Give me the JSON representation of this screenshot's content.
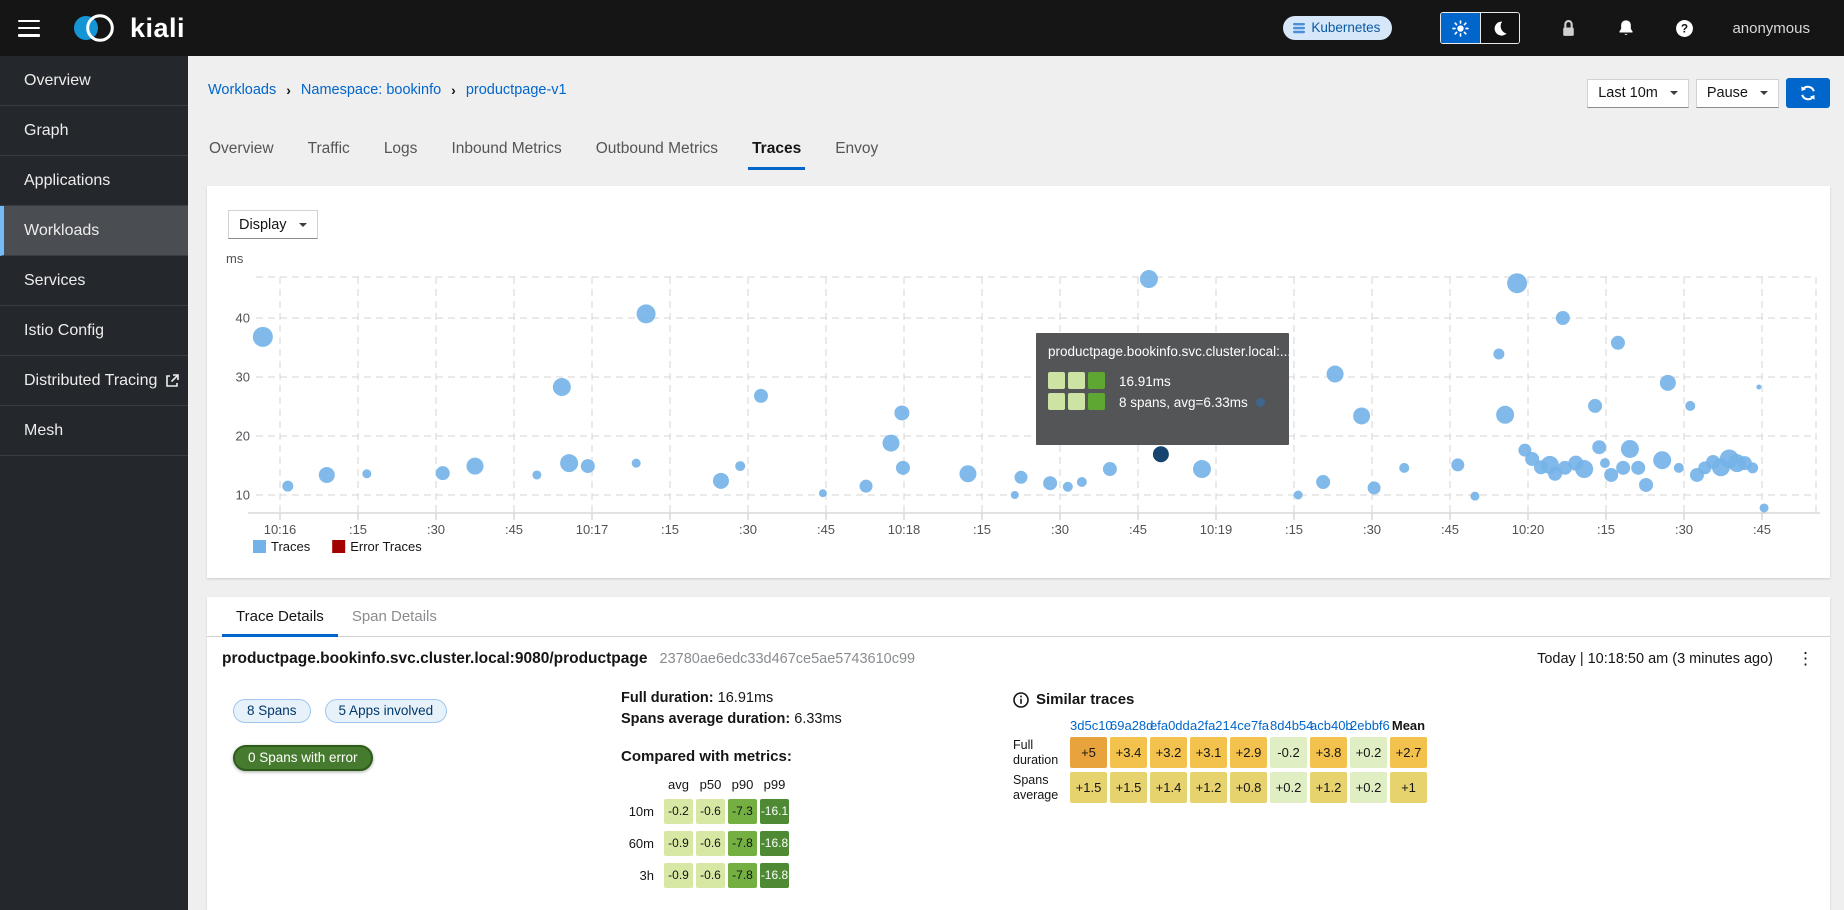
{
  "masthead": {
    "brand": "kiali",
    "cluster_badge": "Kubernetes",
    "user": "anonymous"
  },
  "sidebar": {
    "items": [
      {
        "label": "Overview",
        "active": false,
        "external": false
      },
      {
        "label": "Graph",
        "active": false,
        "external": false
      },
      {
        "label": "Applications",
        "active": false,
        "external": false
      },
      {
        "label": "Workloads",
        "active": true,
        "external": false
      },
      {
        "label": "Services",
        "active": false,
        "external": false
      },
      {
        "label": "Istio Config",
        "active": false,
        "external": false
      },
      {
        "label": "Distributed Tracing",
        "active": false,
        "external": true
      },
      {
        "label": "Mesh",
        "active": false,
        "external": false
      }
    ]
  },
  "breadcrumb": [
    "Workloads",
    "Namespace: bookinfo",
    "productpage-v1"
  ],
  "toolbar": {
    "duration": "Last 10m",
    "refresh": "Pause"
  },
  "tabs": {
    "items": [
      "Overview",
      "Traffic",
      "Logs",
      "Inbound Metrics",
      "Outbound Metrics",
      "Traces",
      "Envoy"
    ],
    "active": "Traces"
  },
  "chart": {
    "display_button": "Display",
    "unit_label": "ms",
    "type": "scatter-bubble",
    "y_ticks": [
      10,
      20,
      30,
      40
    ],
    "x_tick_labels": [
      "10:16",
      ":15",
      ":30",
      ":45",
      "10:17",
      ":15",
      ":30",
      ":45",
      "10:18",
      ":15",
      ":30",
      ":45",
      "10:19",
      ":15",
      ":30",
      ":45",
      "10:20",
      ":15",
      ":30",
      ":45"
    ],
    "legend": [
      {
        "label": "Traces",
        "color": "#73b2e8"
      },
      {
        "label": "Error Traces",
        "color": "#a30000"
      }
    ],
    "points_t_ms_r": [
      [
        -3.3,
        36.8,
        10
      ],
      [
        1.5,
        11.5,
        5.5
      ],
      [
        9,
        13.4,
        8
      ],
      [
        16.7,
        13.6,
        4.5
      ],
      [
        31.3,
        13.7,
        7
      ],
      [
        37.5,
        14.9,
        8.5
      ],
      [
        49.4,
        13.4,
        4.5
      ],
      [
        54.2,
        28.3,
        9
      ],
      [
        55.6,
        15.4,
        9
      ],
      [
        59.2,
        14.9,
        7
      ],
      [
        70.4,
        40.7,
        9.5
      ],
      [
        68.5,
        15.4,
        4.5
      ],
      [
        84.8,
        12.4,
        8
      ],
      [
        88.5,
        14.9,
        5
      ],
      [
        92.5,
        26.8,
        7
      ],
      [
        104.4,
        10.3,
        4
      ],
      [
        112.7,
        11.5,
        6.5
      ],
      [
        117.5,
        18.8,
        8.5
      ],
      [
        119.6,
        23.9,
        7.5
      ],
      [
        119.8,
        14.6,
        7
      ],
      [
        132.3,
        13.6,
        8.5
      ],
      [
        141.3,
        10,
        4
      ],
      [
        142.5,
        13,
        6.5
      ],
      [
        148.1,
        12,
        7
      ],
      [
        151.5,
        11.4,
        5
      ],
      [
        154.2,
        12.2,
        5
      ],
      [
        159.6,
        14.4,
        7
      ],
      [
        167.1,
        46.6,
        9
      ],
      [
        177.3,
        14.4,
        9
      ],
      [
        195.8,
        10,
        4.5
      ],
      [
        200.6,
        12.2,
        7
      ],
      [
        202.9,
        30.5,
        8.5
      ],
      [
        208,
        23.4,
        8.5
      ],
      [
        210.4,
        11.2,
        6.5
      ],
      [
        216.2,
        14.6,
        5
      ],
      [
        226.5,
        15.1,
        6.5
      ],
      [
        229.8,
        9.8,
        4.5
      ],
      [
        234.4,
        33.9,
        5.5
      ],
      [
        235.6,
        23.6,
        9
      ],
      [
        237.9,
        45.9,
        10
      ],
      [
        239.4,
        17.6,
        6.5
      ],
      [
        240.8,
        16.1,
        7
      ],
      [
        242.5,
        14.7,
        7
      ],
      [
        244.2,
        15.1,
        9
      ],
      [
        245.2,
        13.6,
        7
      ],
      [
        246.7,
        40,
        7
      ],
      [
        247.1,
        14.6,
        7
      ],
      [
        249.2,
        15.4,
        7.5
      ],
      [
        250.8,
        14.4,
        9
      ],
      [
        252.9,
        25.1,
        7
      ],
      [
        253.7,
        18.1,
        7
      ],
      [
        254.8,
        15.4,
        5
      ],
      [
        256,
        13.4,
        7
      ],
      [
        257.3,
        35.8,
        7
      ],
      [
        258.3,
        14.6,
        7
      ],
      [
        259.6,
        17.8,
        9
      ],
      [
        261.2,
        14.6,
        7
      ],
      [
        262.7,
        11.7,
        7
      ],
      [
        265.8,
        15.9,
        9
      ],
      [
        266.9,
        29,
        8
      ],
      [
        269,
        14.6,
        5
      ],
      [
        271.2,
        25.1,
        5
      ],
      [
        272.5,
        13.4,
        7
      ],
      [
        274,
        14.6,
        6.5
      ],
      [
        275.6,
        15.6,
        7
      ],
      [
        277.1,
        14.7,
        9
      ],
      [
        278.7,
        16.1,
        9.5
      ],
      [
        280.2,
        15.4,
        9
      ],
      [
        281.7,
        15.4,
        7
      ],
      [
        283.2,
        14.6,
        5.5
      ],
      [
        284.4,
        28.3,
        2.5
      ],
      [
        285.4,
        7.8,
        4.5
      ]
    ],
    "selected_point_t_ms_r": [
      169.4,
      16.91,
      8
    ],
    "tooltip": {
      "title": "productpage.bookinfo.svc.cluster.local:...",
      "duration": "16.91ms",
      "spans": "8 spans, avg=6.33ms",
      "heat_rows": [
        [
          "pale",
          "pale",
          "green"
        ],
        [
          "pale",
          "pale",
          "green"
        ]
      ]
    }
  },
  "trace_details": {
    "tabs": [
      "Trace Details",
      "Span Details"
    ],
    "active_tab": "Trace Details",
    "title": "productpage.bookinfo.svc.cluster.local:9080/productpage",
    "trace_id": "23780ae6edc33d467ce5ae5743610c99",
    "timestamp": "Today | 10:18:50 am (3 minutes ago)",
    "badges": [
      "8 Spans",
      "5 Apps involved"
    ],
    "error_badge": "0 Spans with error",
    "full_duration_label": "Full duration:",
    "full_duration": "16.91ms",
    "spans_avg_label": "Spans average duration:",
    "spans_avg": "6.33ms",
    "compared": {
      "heading": "Compared with metrics:",
      "columns": [
        "avg",
        "p50",
        "p90",
        "p99"
      ],
      "rows": [
        {
          "label": "10m",
          "cells": [
            {
              "v": "-0.2",
              "k": "g1"
            },
            {
              "v": "-0.6",
              "k": "g1"
            },
            {
              "v": "-7.3",
              "k": "g2"
            },
            {
              "v": "-16.1",
              "k": "g3"
            }
          ]
        },
        {
          "label": "60m",
          "cells": [
            {
              "v": "-0.9",
              "k": "g1"
            },
            {
              "v": "-0.6",
              "k": "g1"
            },
            {
              "v": "-7.8",
              "k": "g2"
            },
            {
              "v": "-16.8",
              "k": "g3"
            }
          ]
        },
        {
          "label": "3h",
          "cells": [
            {
              "v": "-0.9",
              "k": "g1"
            },
            {
              "v": "-0.6",
              "k": "g1"
            },
            {
              "v": "-7.8",
              "k": "g2"
            },
            {
              "v": "-16.8",
              "k": "g3"
            }
          ]
        }
      ]
    },
    "similar": {
      "heading": "Similar traces",
      "columns": [
        "3d5c10",
        "69a28d",
        "efa0dd",
        "a2fa21",
        "4ce7fa",
        "8d4b54",
        "acb40b",
        "2ebbf6"
      ],
      "mean_label": "Mean",
      "rows": [
        {
          "label": "Full duration",
          "cells": [
            {
              "v": "+5",
              "k": "o1"
            },
            {
              "v": "+3.4",
              "k": "o2"
            },
            {
              "v": "+3.2",
              "k": "o2"
            },
            {
              "v": "+3.1",
              "k": "o2"
            },
            {
              "v": "+2.9",
              "k": "o2"
            },
            {
              "v": "-0.2",
              "k": "pg"
            },
            {
              "v": "+3.8",
              "k": "o2"
            },
            {
              "v": "+0.2",
              "k": "pg"
            },
            {
              "v": "+2.7",
              "k": "o2"
            }
          ]
        },
        {
          "label": "Spans average",
          "cells": [
            {
              "v": "+1.5",
              "k": "y1"
            },
            {
              "v": "+1.5",
              "k": "y1"
            },
            {
              "v": "+1.4",
              "k": "y1"
            },
            {
              "v": "+1.2",
              "k": "y1"
            },
            {
              "v": "+0.8",
              "k": "y1"
            },
            {
              "v": "+0.2",
              "k": "pg"
            },
            {
              "v": "+1.2",
              "k": "y1"
            },
            {
              "v": "+0.2",
              "k": "pg"
            },
            {
              "v": "+1",
              "k": "y1"
            }
          ]
        }
      ]
    }
  },
  "colors": {
    "accent": "#0066cc",
    "bubble": "#73b2e8",
    "bubble_selected": "#15446f",
    "error_trace": "#a30000",
    "active_nav_border": "#73bcf7"
  }
}
